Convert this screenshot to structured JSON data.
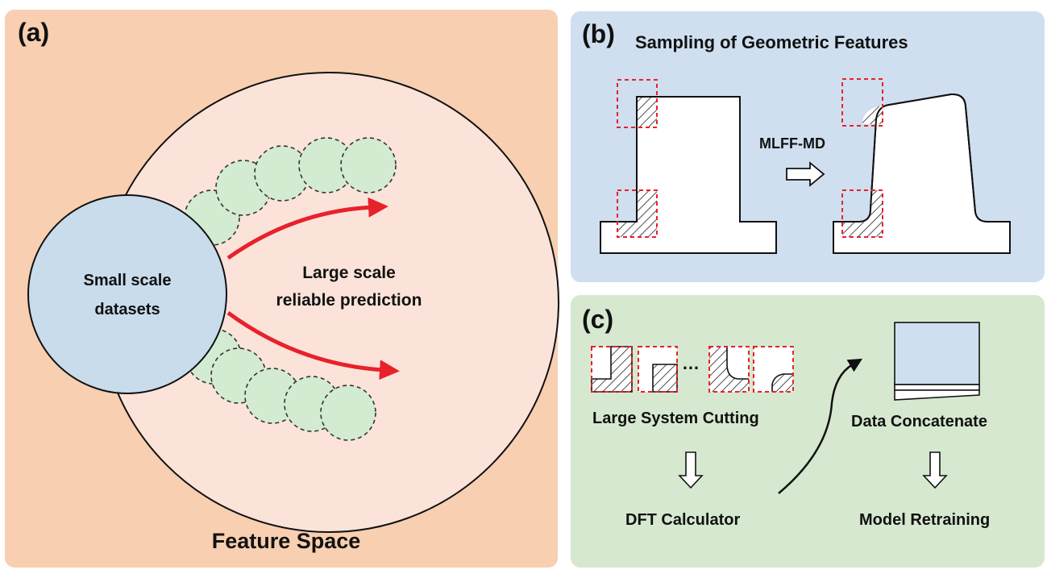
{
  "panel_a": {
    "letter": "(a)",
    "small_label_line1": "Small scale",
    "small_label_line2": "datasets",
    "large_label_line1": "Large scale",
    "large_label_line2": "reliable prediction",
    "footer": "Feature Space",
    "colors": {
      "background": "#f8cfb0",
      "big_circle": "#fbe3da",
      "small_circle": "#c8dcec",
      "sample_circle": "#d3ebd1",
      "arrow": "#e8212a"
    }
  },
  "panel_b": {
    "letter": "(b)",
    "title": "Sampling of Geometric Features",
    "arrow_label": "MLFF-MD",
    "colors": {
      "background": "#cfdff0",
      "dashed_box": "#e8212a"
    }
  },
  "panel_c": {
    "letter": "(c)",
    "ellipsis": "…",
    "cutting_label": "Large System Cutting",
    "dft_label": "DFT Calculator",
    "concat_label": "Data Concatenate",
    "retrain_label": "Model Retraining",
    "colors": {
      "background": "#d6e9d0",
      "data_box": "#cfdff0"
    }
  }
}
